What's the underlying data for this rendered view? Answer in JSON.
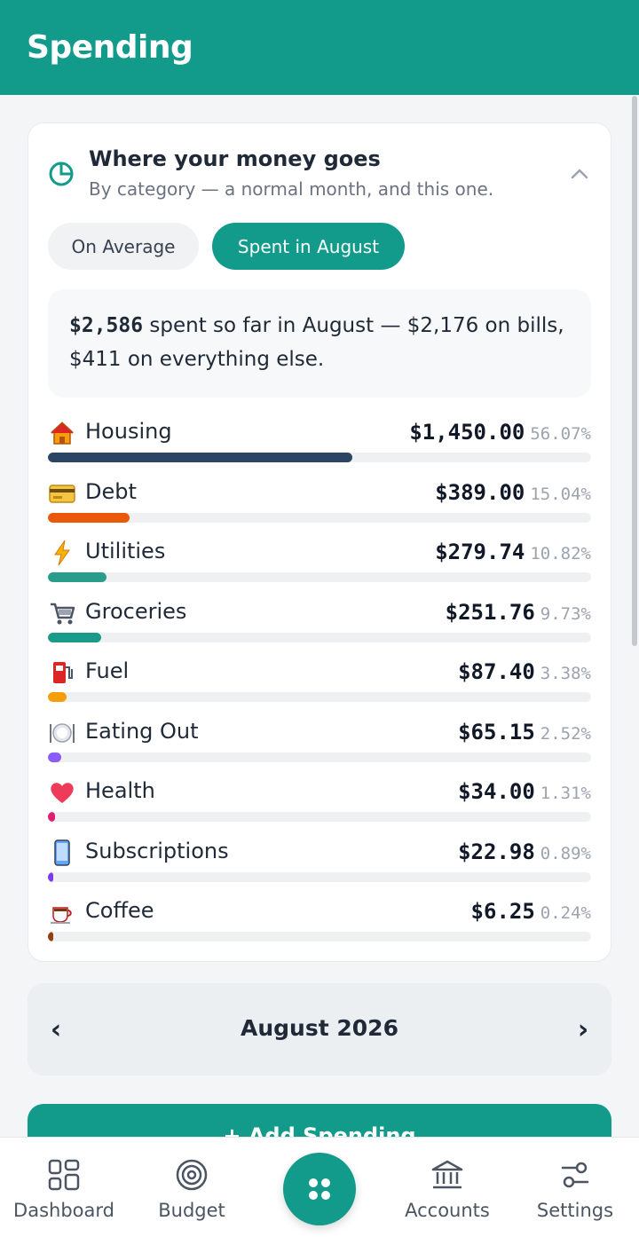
{
  "header": {
    "title": "Spending"
  },
  "card": {
    "title": "Where your money goes",
    "subtitle": "By category — a normal month, and this one.",
    "tabs": [
      {
        "label": "On Average",
        "active": false
      },
      {
        "label": "Spent in August",
        "active": true
      }
    ],
    "summary": {
      "amount": "$2,586",
      "text": " spent so far in August — $2,176 on bills, $411 on everything else."
    },
    "categories": [
      {
        "icon": "house-icon",
        "name": "Housing",
        "amount": "$1,450.00",
        "percent": "56.07%",
        "fraction": 0.5607,
        "color": "#2d4564"
      },
      {
        "icon": "credit-card-icon",
        "name": "Debt",
        "amount": "$389.00",
        "percent": "15.04%",
        "fraction": 0.1504,
        "color": "#ea580c"
      },
      {
        "icon": "lightning-icon",
        "name": "Utilities",
        "amount": "$279.74",
        "percent": "10.82%",
        "fraction": 0.1082,
        "color": "#2a9d8a"
      },
      {
        "icon": "shopping-cart-icon",
        "name": "Groceries",
        "amount": "$251.76",
        "percent": "9.73%",
        "fraction": 0.0973,
        "color": "#1a9a88"
      },
      {
        "icon": "fuel-pump-icon",
        "name": "Fuel",
        "amount": "$87.40",
        "percent": "3.38%",
        "fraction": 0.0338,
        "color": "#f59e0b"
      },
      {
        "icon": "plate-icon",
        "name": "Eating Out",
        "amount": "$65.15",
        "percent": "2.52%",
        "fraction": 0.0252,
        "color": "#8b5cf6"
      },
      {
        "icon": "heart-icon",
        "name": "Health",
        "amount": "$34.00",
        "percent": "1.31%",
        "fraction": 0.0131,
        "color": "#e11d74"
      },
      {
        "icon": "phone-icon",
        "name": "Subscriptions",
        "amount": "$22.98",
        "percent": "0.89%",
        "fraction": 0.0089,
        "color": "#7c3aed"
      },
      {
        "icon": "coffee-icon",
        "name": "Coffee",
        "amount": "$6.25",
        "percent": "0.24%",
        "fraction": 0.0024,
        "color": "#92400e"
      }
    ]
  },
  "month_nav": {
    "prev": "‹",
    "label": "August 2026",
    "next": "›"
  },
  "add_button": {
    "label": "+ Add Spending"
  },
  "bottom_nav": [
    {
      "label": "Dashboard",
      "icon": "dashboard-icon"
    },
    {
      "label": "Budget",
      "icon": "target-icon"
    },
    {
      "label": "",
      "icon": "apps-icon"
    },
    {
      "label": "Accounts",
      "icon": "bank-icon"
    },
    {
      "label": "Settings",
      "icon": "sliders-icon"
    }
  ],
  "colors": {
    "brand": "#129b8b"
  }
}
